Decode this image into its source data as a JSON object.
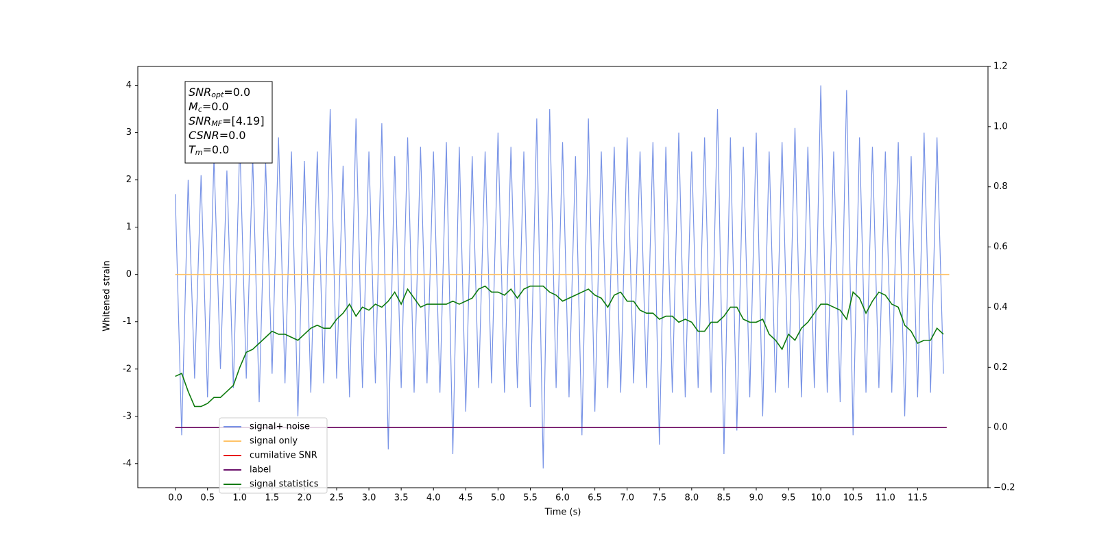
{
  "chart_data": {
    "type": "line",
    "xlabel": "Time (s)",
    "ylabel": "Whitened strain",
    "xlim": [
      -0.58,
      12.59
    ],
    "ylim": [
      -4.51,
      4.4
    ],
    "y2lim": [
      -0.2,
      1.2
    ],
    "xticks": [
      {
        "value": 0,
        "label": "0.0"
      },
      0.5,
      {
        "value": 1,
        "label": "1.0"
      },
      1.5,
      {
        "value": 2,
        "label": "2.0"
      },
      2.5,
      {
        "value": 3,
        "label": "3.0"
      },
      3.5,
      {
        "value": 4,
        "label": "4.0"
      },
      4.5,
      {
        "value": 5,
        "label": "5.0"
      },
      5.5,
      {
        "value": 6,
        "label": "6.0"
      },
      6.5,
      {
        "value": 7,
        "label": "7.0"
      },
      7.5,
      {
        "value": 8,
        "label": "8.0"
      },
      8.5,
      {
        "value": 9,
        "label": "9.0"
      },
      9.5,
      {
        "value": 10,
        "label": "10.0"
      },
      10.5,
      {
        "value": 11,
        "label": "11.0"
      },
      11.5
    ],
    "yticks": [
      -4,
      -3,
      -2,
      -1,
      0,
      1,
      2,
      3,
      4
    ],
    "y2ticks": [
      {
        "value": -0.2,
        "label": "−0.2"
      },
      {
        "value": 0,
        "label": "0.0"
      },
      0.2,
      0.4,
      0.6,
      0.8,
      {
        "value": 1,
        "label": "1.0"
      },
      1.2
    ],
    "x": [
      0,
      0.1,
      0.2,
      0.3,
      0.4,
      0.5,
      0.6,
      0.7,
      0.8,
      0.9,
      1,
      1.1,
      1.2,
      1.3,
      1.4,
      1.5,
      1.6,
      1.7,
      1.8,
      1.9,
      2,
      2.1,
      2.2,
      2.3,
      2.4,
      2.5,
      2.6,
      2.7,
      2.8,
      2.9,
      3,
      3.1,
      3.2,
      3.3,
      3.4,
      3.5,
      3.6,
      3.7,
      3.8,
      3.9,
      4,
      4.1,
      4.2,
      4.3,
      4.4,
      4.5,
      4.6,
      4.7,
      4.8,
      4.9,
      5,
      5.1,
      5.2,
      5.3,
      5.4,
      5.5,
      5.6,
      5.7,
      5.8,
      5.9,
      6,
      6.1,
      6.2,
      6.3,
      6.4,
      6.5,
      6.6,
      6.7,
      6.8,
      6.9,
      7,
      7.1,
      7.2,
      7.3,
      7.4,
      7.5,
      7.6,
      7.7,
      7.8,
      7.9,
      8,
      8.1,
      8.2,
      8.3,
      8.4,
      8.5,
      8.6,
      8.7,
      8.8,
      8.9,
      9,
      9.1,
      9.2,
      9.3,
      9.4,
      9.5,
      9.6,
      9.7,
      9.8,
      9.9,
      10,
      10.1,
      10.2,
      10.3,
      10.4,
      10.5,
      10.6,
      10.7,
      10.8,
      10.9,
      11,
      11.1,
      11.2,
      11.3,
      11.4,
      11.5,
      11.6,
      11.7,
      11.8,
      11.9
    ],
    "series": [
      {
        "name": "signal+ noise",
        "color": "#7893e6",
        "axis": "y",
        "values": [
          1.7,
          -3.4,
          2.0,
          -2.2,
          2.1,
          -2.6,
          2.5,
          -2.0,
          2.2,
          -2.4,
          2.8,
          -2.2,
          2.5,
          -2.7,
          2.4,
          -2.1,
          2.9,
          -2.3,
          2.6,
          -3.0,
          2.4,
          -2.5,
          2.6,
          -2.3,
          3.5,
          -2.2,
          2.3,
          -2.6,
          3.3,
          -2.4,
          2.6,
          -2.3,
          3.2,
          -3.7,
          2.5,
          -2.4,
          2.9,
          -2.5,
          2.7,
          -2.3,
          2.6,
          -2.5,
          2.8,
          -3.8,
          2.7,
          -2.9,
          2.5,
          -2.4,
          2.6,
          -2.3,
          3.0,
          -2.5,
          2.7,
          -2.4,
          2.6,
          -2.8,
          3.3,
          -4.1,
          3.5,
          -2.4,
          2.8,
          -2.6,
          2.5,
          -3.4,
          3.3,
          -2.9,
          2.6,
          -2.4,
          2.7,
          -2.5,
          2.9,
          -2.3,
          2.6,
          -2.4,
          2.8,
          -3.6,
          2.7,
          -2.5,
          3.0,
          -2.6,
          2.6,
          -2.4,
          2.9,
          -2.5,
          3.5,
          -3.8,
          2.9,
          -3.3,
          2.7,
          -2.6,
          3.0,
          -3.0,
          2.6,
          -2.5,
          2.8,
          -2.4,
          3.1,
          -2.6,
          2.7,
          -2.4,
          4.0,
          -2.5,
          2.6,
          -2.7,
          3.9,
          -3.4,
          2.9,
          -2.5,
          2.7,
          -2.4,
          2.6,
          -2.5,
          2.8,
          -3.0,
          2.5,
          -2.6,
          3.0,
          -2.5,
          2.9,
          -2.1
        ]
      },
      {
        "name": "signal only",
        "color": "#ffc266",
        "axis": "y",
        "x": [
          0,
          11.99
        ],
        "values": [
          0,
          0
        ]
      },
      {
        "name": "cumilative SNR",
        "color": "#e8110f",
        "axis": "y2",
        "x": [
          0,
          11.95
        ],
        "values": [
          0,
          0
        ]
      },
      {
        "name": "label",
        "color": "#6a0f6a",
        "axis": "y2",
        "x": [
          0,
          11.95
        ],
        "values": [
          0,
          0
        ]
      },
      {
        "name": "signal statistics",
        "color": "#0d7a0d",
        "axis": "y2",
        "values": [
          0.17,
          0.18,
          0.12,
          0.07,
          0.07,
          0.08,
          0.1,
          0.1,
          0.12,
          0.14,
          0.2,
          0.25,
          0.26,
          0.28,
          0.3,
          0.32,
          0.31,
          0.31,
          0.3,
          0.29,
          0.31,
          0.33,
          0.34,
          0.33,
          0.33,
          0.36,
          0.38,
          0.41,
          0.37,
          0.4,
          0.39,
          0.41,
          0.4,
          0.42,
          0.45,
          0.41,
          0.46,
          0.43,
          0.4,
          0.41,
          0.41,
          0.41,
          0.41,
          0.42,
          0.41,
          0.42,
          0.43,
          0.46,
          0.47,
          0.45,
          0.45,
          0.44,
          0.46,
          0.43,
          0.46,
          0.47,
          0.47,
          0.47,
          0.45,
          0.44,
          0.42,
          0.43,
          0.44,
          0.45,
          0.46,
          0.44,
          0.43,
          0.4,
          0.44,
          0.45,
          0.42,
          0.42,
          0.39,
          0.38,
          0.38,
          0.36,
          0.37,
          0.37,
          0.35,
          0.36,
          0.35,
          0.32,
          0.32,
          0.35,
          0.35,
          0.37,
          0.4,
          0.4,
          0.36,
          0.35,
          0.35,
          0.36,
          0.31,
          0.29,
          0.26,
          0.31,
          0.29,
          0.33,
          0.35,
          0.38,
          0.41,
          0.41,
          0.4,
          0.39,
          0.36,
          0.45,
          0.43,
          0.38,
          0.42,
          0.45,
          0.44,
          0.41,
          0.4,
          0.34,
          0.32,
          0.28,
          0.29,
          0.29,
          0.33,
          0.31
        ]
      }
    ],
    "annotations": [
      {
        "name": "SNR",
        "sub": "opt",
        "text": "=0.0"
      },
      {
        "name": "M",
        "sub": "c",
        "text": "=0.0"
      },
      {
        "name": "SNR",
        "sub": "MF",
        "text": "=[4.19]"
      },
      {
        "name": "CSNR",
        "sub": "",
        "text": "=0.0"
      },
      {
        "name": "T",
        "sub": "m",
        "text": "=0.0"
      }
    ]
  }
}
